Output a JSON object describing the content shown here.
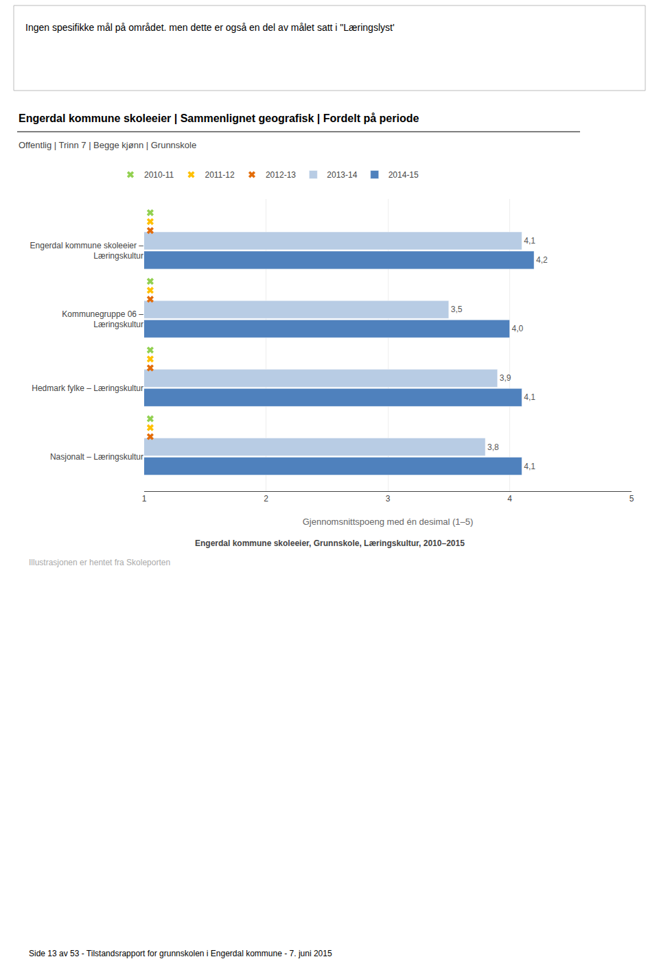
{
  "chart_data": {
    "type": "bar",
    "orientation": "horizontal",
    "title": "Engerdal kommune skoleeier | Sammenlignet geografisk | Fordelt på periode",
    "subtitle": "Offentlig | Trinn 7 | Begge kjønn | Grunnskole",
    "annotations": [
      "Ingen spesifikke mål på området. men dette er også en del av målet satt i \"Læringslyst'",
      "Engerdal kommune skoleeier, Grunnskole, Læringskultur, 2010–2015",
      "Illustrasjonen er hentet fra Skoleporten",
      "Side 13 av 53 - Tilstandsrapport for grunnskolen i Engerdal kommune - 7. juni 2015"
    ],
    "categories": [
      "Engerdal kommune skoleeier –\nLæringskultur",
      "Kommunegruppe 06 –\nLæringskultur",
      "Hedmark fylke – Læringskultur",
      "Nasjonalt – Læringskultur"
    ],
    "series": [
      {
        "name": "2010-11",
        "type": "scatter",
        "marker": "x",
        "color": "#92d050",
        "values": [
          1.05,
          1.05,
          1.05,
          1.05
        ]
      },
      {
        "name": "2011-12",
        "type": "scatter",
        "marker": "x",
        "color": "#ffc000",
        "values": [
          1.05,
          1.05,
          1.05,
          1.05
        ]
      },
      {
        "name": "2012-13",
        "type": "scatter",
        "marker": "x",
        "color": "#e36c09",
        "values": [
          1.05,
          1.05,
          1.05,
          1.05
        ]
      },
      {
        "name": "2013-14",
        "type": "bar",
        "color": "#b8cce4",
        "values": [
          4.1,
          3.5,
          3.9,
          3.8
        ],
        "value_labels": [
          "4,1",
          "3,5",
          "3,9",
          "3,8"
        ]
      },
      {
        "name": "2014-15",
        "type": "bar",
        "color": "#4f81bd",
        "values": [
          4.2,
          4.0,
          4.1,
          4.1
        ],
        "value_labels": [
          "4,2",
          "4,0",
          "4,1",
          "4,1"
        ]
      }
    ],
    "xlabel": "Gjennomsnittspoeng med én desimal (1–5)",
    "xlim": [
      1,
      5
    ],
    "xticks": [
      1,
      2,
      3,
      4,
      5
    ],
    "grid": true,
    "data_labels": true,
    "legend": "top"
  }
}
